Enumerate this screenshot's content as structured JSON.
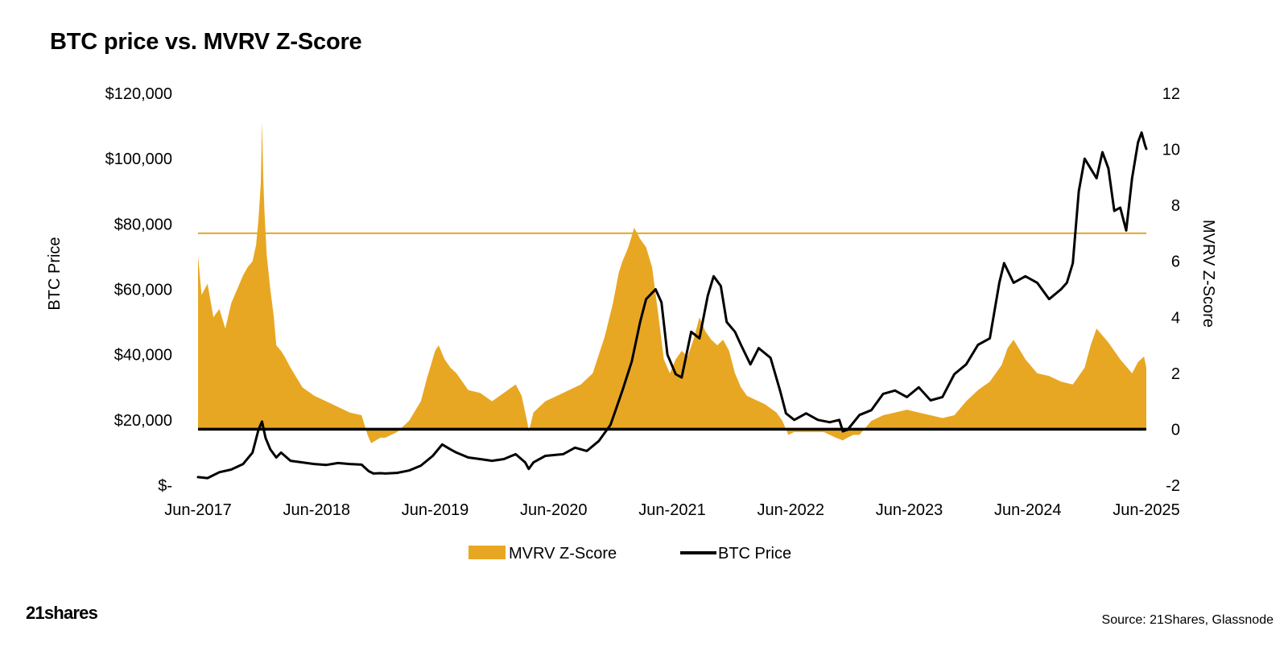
{
  "page": {
    "title": "BTC price vs. MVRV Z-Score",
    "logo_text": "21shares",
    "source": "Source: 21Shares, Glassnode"
  },
  "colors": {
    "mvrv_fill": "#E8A723",
    "threshold_line": "#E8A723",
    "price_line": "#000000",
    "zero_line": "#000000"
  },
  "chart_data": {
    "type": "area",
    "title": "BTC price vs. MVRV Z-Score",
    "x_ticks": [
      "Jun-2017",
      "Jun-2018",
      "Jun-2019",
      "Jun-2020",
      "Jun-2021",
      "Jun-2022",
      "Jun-2023",
      "Jun-2024",
      "Jun-2025"
    ],
    "x_range": [
      2017.42,
      2025.42
    ],
    "y_left": {
      "label": "BTC Price",
      "range": [
        0,
        120000
      ],
      "ticks": [
        0,
        20000,
        40000,
        60000,
        80000,
        100000,
        120000
      ],
      "tick_labels": [
        "$-",
        "$20,000",
        "$40,000",
        "$60,000",
        "$80,000",
        "$100,000",
        "$120,000"
      ]
    },
    "y_right": {
      "label": "MVRV Z-Score",
      "range": [
        -2,
        12
      ],
      "ticks": [
        -2,
        0,
        2,
        4,
        6,
        8,
        10,
        12
      ],
      "tick_labels": [
        "-2",
        "0",
        "2",
        "4",
        "6",
        "8",
        "10",
        "12"
      ]
    },
    "threshold": {
      "value": 7,
      "axis": "right"
    },
    "legend": [
      "MVRV Z-Score",
      "BTC Price"
    ],
    "series": [
      {
        "name": "MVRV Z-Score",
        "axis": "right",
        "style": "area",
        "x": [
          2017.42,
          2017.45,
          2017.5,
          2017.55,
          2017.6,
          2017.65,
          2017.7,
          2017.75,
          2017.8,
          2017.84,
          2017.88,
          2017.91,
          2017.93,
          2017.95,
          2017.96,
          2017.97,
          2017.98,
          2018.0,
          2018.03,
          2018.06,
          2018.08,
          2018.12,
          2018.15,
          2018.2,
          2018.3,
          2018.4,
          2018.5,
          2018.6,
          2018.7,
          2018.8,
          2018.85,
          2018.88,
          2018.92,
          2018.96,
          2019.0,
          2019.1,
          2019.2,
          2019.3,
          2019.35,
          2019.42,
          2019.45,
          2019.5,
          2019.55,
          2019.6,
          2019.7,
          2019.8,
          2019.9,
          2020.0,
          2020.1,
          2020.15,
          2020.2,
          2020.21,
          2020.25,
          2020.35,
          2020.45,
          2020.55,
          2020.65,
          2020.75,
          2020.85,
          2020.92,
          2020.97,
          2021.0,
          2021.05,
          2021.1,
          2021.15,
          2021.2,
          2021.25,
          2021.3,
          2021.35,
          2021.4,
          2021.45,
          2021.5,
          2021.55,
          2021.6,
          2021.65,
          2021.7,
          2021.75,
          2021.8,
          2021.85,
          2021.9,
          2021.95,
          2022.0,
          2022.05,
          2022.1,
          2022.2,
          2022.3,
          2022.35,
          2022.4,
          2022.45,
          2022.5,
          2022.6,
          2022.7,
          2022.8,
          2022.86,
          2022.9,
          2022.95,
          2023.0,
          2023.1,
          2023.2,
          2023.3,
          2023.4,
          2023.5,
          2023.6,
          2023.7,
          2023.8,
          2023.9,
          2024.0,
          2024.1,
          2024.2,
          2024.25,
          2024.3,
          2024.4,
          2024.5,
          2024.6,
          2024.7,
          2024.8,
          2024.9,
          2024.95,
          2025.0,
          2025.1,
          2025.2,
          2025.3,
          2025.35,
          2025.4,
          2025.42
        ],
        "values": [
          6.2,
          4.8,
          5.2,
          4.0,
          4.3,
          3.6,
          4.5,
          5.0,
          5.5,
          5.8,
          6.0,
          6.6,
          7.5,
          8.8,
          11.0,
          9.0,
          7.8,
          6.2,
          5.0,
          4.0,
          3.0,
          2.8,
          2.6,
          2.2,
          1.5,
          1.2,
          1.0,
          0.8,
          0.6,
          0.5,
          -0.2,
          -0.5,
          -0.4,
          -0.3,
          -0.3,
          -0.1,
          0.3,
          1.0,
          1.8,
          2.8,
          3.0,
          2.5,
          2.2,
          2.0,
          1.4,
          1.3,
          1.0,
          1.3,
          1.6,
          1.2,
          0.2,
          -0.1,
          0.6,
          1.0,
          1.2,
          1.4,
          1.6,
          2.0,
          3.3,
          4.5,
          5.6,
          6.0,
          6.5,
          7.2,
          6.8,
          6.5,
          5.8,
          4.2,
          2.5,
          2.0,
          2.5,
          2.8,
          2.6,
          3.2,
          4.0,
          3.5,
          3.2,
          3.0,
          3.2,
          2.8,
          2.0,
          1.5,
          1.2,
          1.1,
          0.9,
          0.6,
          0.3,
          -0.2,
          -0.1,
          -0.1,
          -0.1,
          -0.1,
          -0.3,
          -0.4,
          -0.3,
          -0.2,
          -0.2,
          0.3,
          0.5,
          0.6,
          0.7,
          0.6,
          0.5,
          0.4,
          0.5,
          1.0,
          1.4,
          1.7,
          2.3,
          2.9,
          3.2,
          2.5,
          2.0,
          1.9,
          1.7,
          1.6,
          2.2,
          3.0,
          3.6,
          3.1,
          2.5,
          2.0,
          2.4,
          2.6,
          2.2
        ]
      },
      {
        "name": "BTC Price",
        "axis": "left",
        "style": "line",
        "x": [
          2017.42,
          2017.5,
          2017.6,
          2017.7,
          2017.8,
          2017.88,
          2017.93,
          2017.96,
          2017.99,
          2018.03,
          2018.08,
          2018.12,
          2018.2,
          2018.3,
          2018.4,
          2018.5,
          2018.6,
          2018.7,
          2018.8,
          2018.86,
          2018.9,
          2018.96,
          2019.0,
          2019.1,
          2019.2,
          2019.3,
          2019.4,
          2019.48,
          2019.55,
          2019.6,
          2019.7,
          2019.8,
          2019.9,
          2020.0,
          2020.1,
          2020.18,
          2020.21,
          2020.25,
          2020.35,
          2020.5,
          2020.6,
          2020.7,
          2020.8,
          2020.9,
          2021.0,
          2021.08,
          2021.15,
          2021.2,
          2021.28,
          2021.33,
          2021.38,
          2021.45,
          2021.5,
          2021.58,
          2021.65,
          2021.72,
          2021.77,
          2021.83,
          2021.88,
          2021.95,
          2022.0,
          2022.08,
          2022.15,
          2022.25,
          2022.33,
          2022.38,
          2022.45,
          2022.55,
          2022.65,
          2022.75,
          2022.83,
          2022.86,
          2022.9,
          2023.0,
          2023.1,
          2023.2,
          2023.3,
          2023.4,
          2023.5,
          2023.6,
          2023.7,
          2023.8,
          2023.9,
          2024.0,
          2024.1,
          2024.18,
          2024.22,
          2024.3,
          2024.4,
          2024.5,
          2024.6,
          2024.7,
          2024.75,
          2024.8,
          2024.85,
          2024.9,
          2025.0,
          2025.05,
          2025.1,
          2025.15,
          2025.2,
          2025.25,
          2025.3,
          2025.35,
          2025.38,
          2025.41,
          2025.42
        ],
        "values": [
          2500,
          2200,
          4000,
          4800,
          6500,
          10000,
          17000,
          19500,
          14500,
          11000,
          8500,
          10000,
          7500,
          7000,
          6500,
          6200,
          6800,
          6500,
          6300,
          4300,
          3600,
          3700,
          3600,
          3800,
          4500,
          6000,
          9000,
          12500,
          11000,
          10000,
          8500,
          8000,
          7500,
          8000,
          9500,
          7000,
          5000,
          7000,
          9000,
          9500,
          11500,
          10500,
          13500,
          18500,
          29000,
          38000,
          50000,
          57000,
          60000,
          56000,
          40000,
          34000,
          33000,
          47000,
          45000,
          58000,
          64000,
          61000,
          50000,
          47000,
          43000,
          37000,
          42000,
          39000,
          29000,
          22000,
          20000,
          22000,
          20000,
          19300,
          20000,
          16500,
          17000,
          21500,
          23000,
          28000,
          29000,
          27000,
          30000,
          26000,
          27000,
          34000,
          37000,
          43000,
          45000,
          62000,
          68000,
          62000,
          64000,
          62000,
          57000,
          60000,
          62000,
          68000,
          90000,
          100000,
          94000,
          102000,
          97000,
          84000,
          85000,
          78000,
          94000,
          105000,
          108000,
          104000,
          103000
        ]
      }
    ]
  }
}
